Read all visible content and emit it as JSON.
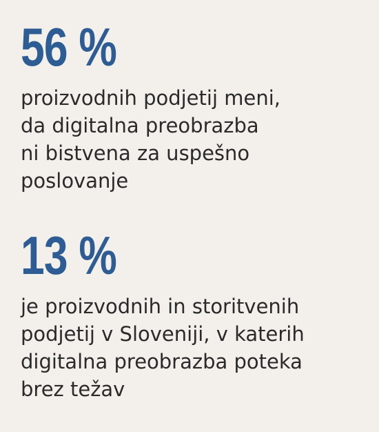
{
  "stats": [
    {
      "value": "56 %",
      "lines": [
        "proizvodnih podjetij meni,",
        "da digitalna preobrazba",
        "ni bistvena za uspešno",
        "poslovanje"
      ]
    },
    {
      "value": "13 %",
      "lines": [
        "je proizvodnih in storitvenih",
        "podjetij v Sloveniji, v katerih",
        "digitalna preobrazba poteka",
        "brez težav"
      ]
    }
  ],
  "colors": {
    "background": "#f3f0eb",
    "accent": "#2e5c94",
    "text": "#2a2a2a"
  }
}
